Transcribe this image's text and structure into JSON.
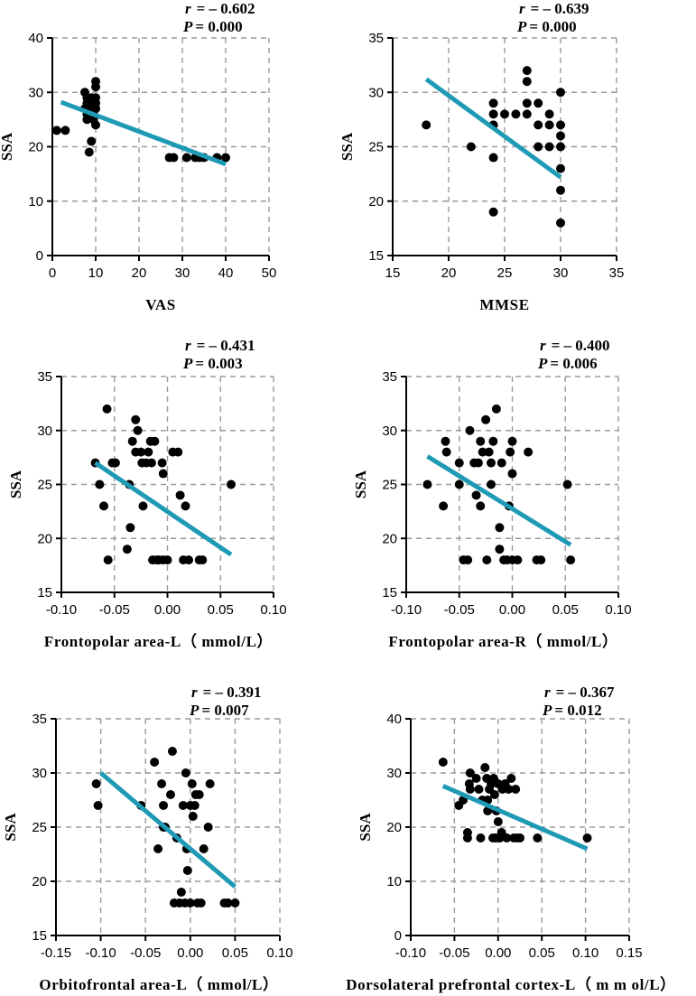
{
  "chart_data": [
    {
      "type": "scatter",
      "xlabel": "VAS",
      "ylabel": "SSA",
      "r_label": "r",
      "r_value": "= – 0.602",
      "p_label": "P",
      "p_value": "= 0.000",
      "xlim": [
        0,
        50
      ],
      "xticks": [
        0,
        10,
        20,
        30,
        40,
        50
      ],
      "ylim": [
        0,
        40
      ],
      "yticks": [
        0,
        10,
        20,
        30,
        40
      ],
      "fit_line": [
        [
          2,
          28.2
        ],
        [
          40,
          16.8
        ]
      ],
      "points": [
        [
          1,
          23
        ],
        [
          3,
          23
        ],
        [
          7.5,
          30
        ],
        [
          7.5,
          27
        ],
        [
          8,
          29
        ],
        [
          8,
          28
        ],
        [
          8,
          26
        ],
        [
          8,
          25
        ],
        [
          8.5,
          27
        ],
        [
          8.5,
          19
        ],
        [
          9,
          29
        ],
        [
          9,
          28
        ],
        [
          9,
          27
        ],
        [
          9,
          21
        ],
        [
          9.5,
          26
        ],
        [
          9.5,
          25
        ],
        [
          10,
          32
        ],
        [
          10,
          31
        ],
        [
          10,
          29
        ],
        [
          10,
          28
        ],
        [
          10,
          27
        ],
        [
          10,
          24
        ],
        [
          27,
          18
        ],
        [
          28,
          18
        ],
        [
          31,
          18
        ],
        [
          33,
          18
        ],
        [
          34,
          18
        ],
        [
          35,
          18
        ],
        [
          38,
          18
        ],
        [
          40,
          18
        ]
      ]
    },
    {
      "type": "scatter",
      "xlabel": "MMSE",
      "ylabel": "SSA",
      "r_label": "r",
      "r_value": "= – 0.639",
      "p_label": "P",
      "p_value": "= 0.000",
      "xlim": [
        15,
        35
      ],
      "xticks": [
        15,
        20,
        25,
        30,
        35
      ],
      "ylim": [
        15,
        35
      ],
      "yticks": [
        15,
        20,
        25,
        30,
        35
      ],
      "fit_line": [
        [
          18,
          31.2
        ],
        [
          30,
          22.2
        ]
      ],
      "points": [
        [
          18,
          27
        ],
        [
          22,
          25
        ],
        [
          24,
          29
        ],
        [
          24,
          28
        ],
        [
          24,
          27
        ],
        [
          24,
          24
        ],
        [
          24,
          19
        ],
        [
          25,
          28
        ],
        [
          26,
          28
        ],
        [
          27,
          32
        ],
        [
          27,
          31
        ],
        [
          27,
          29
        ],
        [
          27,
          28
        ],
        [
          28,
          29
        ],
        [
          28,
          27
        ],
        [
          28,
          25
        ],
        [
          29,
          28
        ],
        [
          29,
          27
        ],
        [
          29,
          25
        ],
        [
          30,
          30
        ],
        [
          30,
          27
        ],
        [
          30,
          26
        ],
        [
          30,
          25
        ],
        [
          30,
          23
        ],
        [
          30,
          21
        ],
        [
          30,
          18
        ]
      ]
    },
    {
      "type": "scatter",
      "xlabel": "Frontopolar area-L（ mmol/L）",
      "ylabel": "SSA",
      "r_label": "r",
      "r_value": "= – 0.431",
      "p_label": "P",
      "p_value": "= 0.003",
      "xlim": [
        -0.1,
        0.1
      ],
      "xticks": [
        -0.1,
        -0.05,
        0.0,
        0.05,
        0.1
      ],
      "ylim": [
        15,
        35
      ],
      "yticks": [
        15,
        20,
        25,
        30,
        35
      ],
      "fit_line": [
        [
          -0.068,
          27.0
        ],
        [
          0.06,
          18.5
        ]
      ],
      "points": [
        [
          -0.068,
          27
        ],
        [
          -0.064,
          25
        ],
        [
          -0.06,
          23
        ],
        [
          -0.057,
          32
        ],
        [
          -0.056,
          18
        ],
        [
          -0.052,
          27
        ],
        [
          -0.049,
          27
        ],
        [
          -0.038,
          19
        ],
        [
          -0.036,
          25
        ],
        [
          -0.035,
          21
        ],
        [
          -0.033,
          29
        ],
        [
          -0.03,
          31
        ],
        [
          -0.03,
          28
        ],
        [
          -0.028,
          30
        ],
        [
          -0.025,
          28
        ],
        [
          -0.024,
          27
        ],
        [
          -0.023,
          23
        ],
        [
          -0.02,
          27
        ],
        [
          -0.018,
          28
        ],
        [
          -0.016,
          29
        ],
        [
          -0.015,
          27
        ],
        [
          -0.014,
          18
        ],
        [
          -0.012,
          29
        ],
        [
          -0.01,
          18
        ],
        [
          -0.008,
          18
        ],
        [
          -0.005,
          27
        ],
        [
          -0.004,
          26
        ],
        [
          -0.004,
          18
        ],
        [
          0.0,
          18
        ],
        [
          0.005,
          28
        ],
        [
          0.01,
          28
        ],
        [
          0.012,
          24
        ],
        [
          0.015,
          18
        ],
        [
          0.017,
          23
        ],
        [
          0.02,
          18
        ],
        [
          0.03,
          18
        ],
        [
          0.033,
          18
        ],
        [
          0.06,
          25
        ]
      ]
    },
    {
      "type": "scatter",
      "xlabel": "Frontopolar area-R（ mmol/L）",
      "ylabel": "SSA",
      "r_label": "r",
      "r_value": "= – 0.400",
      "p_label": "P",
      "p_value": "= 0.006",
      "xlim": [
        -0.1,
        0.1
      ],
      "xticks": [
        -0.1,
        -0.05,
        0.0,
        0.05,
        0.1
      ],
      "ylim": [
        15,
        35
      ],
      "yticks": [
        15,
        20,
        25,
        30,
        35
      ],
      "fit_line": [
        [
          -0.08,
          27.6
        ],
        [
          0.055,
          19.4
        ]
      ],
      "points": [
        [
          -0.08,
          25
        ],
        [
          -0.065,
          23
        ],
        [
          -0.063,
          29
        ],
        [
          -0.062,
          28
        ],
        [
          -0.05,
          27
        ],
        [
          -0.05,
          25
        ],
        [
          -0.046,
          18
        ],
        [
          -0.042,
          18
        ],
        [
          -0.04,
          30
        ],
        [
          -0.036,
          27
        ],
        [
          -0.034,
          24
        ],
        [
          -0.032,
          27
        ],
        [
          -0.03,
          29
        ],
        [
          -0.03,
          23
        ],
        [
          -0.028,
          28
        ],
        [
          -0.025,
          31
        ],
        [
          -0.024,
          18
        ],
        [
          -0.022,
          28
        ],
        [
          -0.02,
          27
        ],
        [
          -0.02,
          25
        ],
        [
          -0.018,
          29
        ],
        [
          -0.015,
          32
        ],
        [
          -0.012,
          19
        ],
        [
          -0.012,
          21
        ],
        [
          -0.01,
          27
        ],
        [
          -0.008,
          18
        ],
        [
          -0.005,
          18
        ],
        [
          -0.003,
          23
        ],
        [
          -0.002,
          28
        ],
        [
          0.0,
          29
        ],
        [
          0.0,
          26
        ],
        [
          0.0,
          18
        ],
        [
          0.005,
          18
        ],
        [
          0.015,
          28
        ],
        [
          0.023,
          18
        ],
        [
          0.027,
          18
        ],
        [
          0.052,
          25
        ],
        [
          0.055,
          18
        ]
      ]
    },
    {
      "type": "scatter",
      "xlabel": "Orbitofrontal area-L（ mmol/L）",
      "ylabel": "SSA",
      "r_label": "r",
      "r_value": "= – 0.391",
      "p_label": "P",
      "p_value": "= 0.007",
      "xlim": [
        -0.15,
        0.1
      ],
      "xticks": [
        -0.15,
        -0.1,
        -0.05,
        0.0,
        0.05,
        0.1
      ],
      "ylim": [
        15,
        35
      ],
      "yticks": [
        15,
        20,
        25,
        30,
        35
      ],
      "fit_line": [
        [
          -0.1,
          30.0
        ],
        [
          0.05,
          19.5
        ]
      ],
      "points": [
        [
          -0.105,
          29
        ],
        [
          -0.103,
          27
        ],
        [
          -0.055,
          27
        ],
        [
          -0.04,
          31
        ],
        [
          -0.036,
          23
        ],
        [
          -0.032,
          29
        ],
        [
          -0.03,
          25
        ],
        [
          -0.03,
          27
        ],
        [
          -0.028,
          25
        ],
        [
          -0.022,
          28
        ],
        [
          -0.02,
          32
        ],
        [
          -0.018,
          18
        ],
        [
          -0.015,
          24
        ],
        [
          -0.012,
          18
        ],
        [
          -0.01,
          19
        ],
        [
          -0.008,
          27
        ],
        [
          -0.006,
          18
        ],
        [
          -0.005,
          30
        ],
        [
          -0.004,
          23
        ],
        [
          -0.003,
          21
        ],
        [
          0.0,
          27
        ],
        [
          0.0,
          18
        ],
        [
          0.002,
          29
        ],
        [
          0.003,
          26
        ],
        [
          0.005,
          27
        ],
        [
          0.006,
          28
        ],
        [
          0.008,
          18
        ],
        [
          0.01,
          28
        ],
        [
          0.012,
          18
        ],
        [
          0.015,
          23
        ],
        [
          0.02,
          25
        ],
        [
          0.022,
          29
        ],
        [
          0.038,
          18
        ],
        [
          0.042,
          18
        ],
        [
          0.05,
          18
        ]
      ]
    },
    {
      "type": "scatter",
      "xlabel": "Dorsolateral prefrontal cortex-L（ m m ol/L）",
      "ylabel": "SSA",
      "r_label": "r",
      "r_value": "= – 0.367",
      "p_label": "P",
      "p_value": "= 0.012",
      "xlim": [
        -0.1,
        0.15
      ],
      "xticks": [
        -0.1,
        -0.05,
        0.0,
        0.05,
        0.1,
        0.15
      ],
      "ylim": [
        0,
        40
      ],
      "yticks": [
        0,
        10,
        20,
        30,
        40
      ],
      "fit_line": [
        [
          -0.063,
          27.6
        ],
        [
          0.102,
          16.0
        ]
      ],
      "points": [
        [
          -0.063,
          32
        ],
        [
          -0.045,
          24
        ],
        [
          -0.04,
          25
        ],
        [
          -0.035,
          18
        ],
        [
          -0.035,
          19
        ],
        [
          -0.033,
          28
        ],
        [
          -0.032,
          27
        ],
        [
          -0.032,
          30
        ],
        [
          -0.025,
          29
        ],
        [
          -0.022,
          27
        ],
        [
          -0.02,
          18
        ],
        [
          -0.018,
          25
        ],
        [
          -0.015,
          31
        ],
        [
          -0.013,
          29
        ],
        [
          -0.012,
          25
        ],
        [
          -0.012,
          23
        ],
        [
          -0.01,
          27
        ],
        [
          -0.008,
          28
        ],
        [
          -0.006,
          18
        ],
        [
          -0.005,
          29
        ],
        [
          -0.004,
          26
        ],
        [
          -0.003,
          18
        ],
        [
          -0.002,
          23
        ],
        [
          0.0,
          28
        ],
        [
          0.0,
          21
        ],
        [
          0.002,
          18
        ],
        [
          0.004,
          19
        ],
        [
          0.005,
          27
        ],
        [
          0.008,
          28
        ],
        [
          0.01,
          18
        ],
        [
          0.012,
          27
        ],
        [
          0.015,
          29
        ],
        [
          0.018,
          18
        ],
        [
          0.02,
          27
        ],
        [
          0.022,
          18
        ],
        [
          0.025,
          18
        ],
        [
          0.045,
          18
        ],
        [
          0.102,
          18
        ]
      ]
    }
  ],
  "style": {
    "point_color": "#000000",
    "fit_color": "#1f9ab5",
    "grid_color": "#9a9a9a"
  }
}
